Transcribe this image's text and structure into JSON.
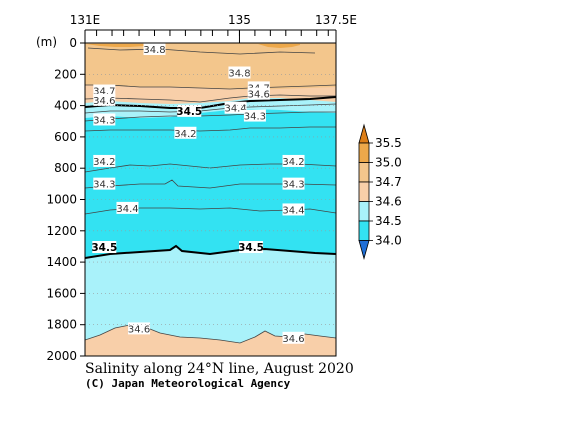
{
  "chart_data": {
    "type": "contour",
    "title": "Salinity along 24°N line, August 2020",
    "credit": "(C) Japan Meteorological Agency",
    "x_axis": {
      "range": [
        131,
        137.5
      ],
      "tick_labels": [
        {
          "value": 131,
          "label": "131E"
        },
        {
          "value": 135,
          "label": "135"
        },
        {
          "value": 137.5,
          "label": "137.5E"
        }
      ]
    },
    "y_axis": {
      "unit": "(m)",
      "range": [
        0,
        2000
      ],
      "inverted": true,
      "ticks": [
        0,
        200,
        400,
        600,
        800,
        1000,
        1200,
        1400,
        1600,
        1800,
        2000
      ]
    },
    "colorbar": {
      "levels": [
        "34.0",
        "34.5",
        "34.6",
        "34.7",
        "35.0",
        "35.5"
      ],
      "colors": {
        "below_34_0": "#1f6fd6",
        "34_0_to_34_5": "#33e2f2",
        "34_5_to_34_6": "#a9f2fa",
        "34_6_to_34_7": "#f8cfa9",
        "34_7_to_35_0": "#f3c68c",
        "35_0_to_35_5": "#eda84a",
        "above_35_5": "#dd7f18"
      }
    },
    "contours": [
      {
        "value": 34.8,
        "points": [
          [
            131.8,
            40
          ],
          [
            133.5,
            50
          ],
          [
            135.5,
            70
          ],
          [
            137.3,
            60
          ]
        ]
      },
      {
        "value": 34.7,
        "points": [
          [
            131,
            270
          ],
          [
            133,
            275
          ],
          [
            135,
            290
          ],
          [
            137.3,
            250
          ]
        ]
      },
      {
        "value": 34.6,
        "points": [
          [
            131,
            350
          ],
          [
            133,
            360
          ],
          [
            135,
            310
          ],
          [
            137.3,
            330
          ]
        ]
      },
      {
        "value": 34.5,
        "points": [
          [
            131,
            410
          ],
          [
            132.5,
            395
          ],
          [
            134,
            420
          ],
          [
            135.5,
            380
          ],
          [
            137.5,
            350
          ]
        ]
      },
      {
        "value": 34.4,
        "points": [
          [
            131,
            450
          ],
          [
            133,
            430
          ],
          [
            135,
            400
          ],
          [
            137.3,
            420
          ]
        ]
      },
      {
        "value": 34.3,
        "points": [
          [
            131,
            505
          ],
          [
            133,
            480
          ],
          [
            135,
            490
          ],
          [
            137.3,
            460
          ]
        ]
      },
      {
        "value": 34.2,
        "points": [
          [
            131,
            560
          ],
          [
            133,
            580
          ],
          [
            135,
            560
          ],
          [
            137.5,
            560
          ]
        ]
      },
      {
        "value": 34.2,
        "points": [
          [
            131,
            830
          ],
          [
            133,
            790
          ],
          [
            135,
            790
          ],
          [
            137.5,
            800
          ]
        ]
      },
      {
        "value": 34.3,
        "points": [
          [
            131,
            930
          ],
          [
            133,
            910
          ],
          [
            135,
            930
          ],
          [
            137.5,
            900
          ]
        ]
      },
      {
        "value": 34.4,
        "points": [
          [
            131,
            1100
          ],
          [
            133,
            1060
          ],
          [
            135,
            1080
          ],
          [
            137.5,
            1060
          ]
        ]
      },
      {
        "value": 34.5,
        "points": [
          [
            131,
            1360
          ],
          [
            133,
            1330
          ],
          [
            135,
            1330
          ],
          [
            137.5,
            1360
          ]
        ]
      },
      {
        "value": 34.6,
        "points": [
          [
            131,
            1880
          ],
          [
            132.3,
            1820
          ],
          [
            134.5,
            1880
          ],
          [
            135.5,
            1840
          ],
          [
            137.5,
            1880
          ]
        ]
      }
    ],
    "contour_labels": [
      {
        "text": "34.8",
        "x": 132.8,
        "y": 45
      },
      {
        "text": "34.8",
        "x": 135,
        "y": 195
      },
      {
        "text": "34.7",
        "x": 131.5,
        "y": 310
      },
      {
        "text": "34.7",
        "x": 135.5,
        "y": 290
      },
      {
        "text": "34.6",
        "x": 131.5,
        "y": 370
      },
      {
        "text": "34.6",
        "x": 135.5,
        "y": 330
      },
      {
        "text": "34.5",
        "x": 133.7,
        "y": 440,
        "bold": true
      },
      {
        "text": "34.4",
        "x": 134.9,
        "y": 420
      },
      {
        "text": "34.3",
        "x": 131.5,
        "y": 495
      },
      {
        "text": "34.3",
        "x": 135.4,
        "y": 470
      },
      {
        "text": "34.2",
        "x": 133.6,
        "y": 580
      },
      {
        "text": "34.2",
        "x": 131.5,
        "y": 760
      },
      {
        "text": "34.2",
        "x": 136.4,
        "y": 760
      },
      {
        "text": "34.3",
        "x": 131.5,
        "y": 905
      },
      {
        "text": "34.3",
        "x": 136.4,
        "y": 905
      },
      {
        "text": "34.4",
        "x": 132.1,
        "y": 1060
      },
      {
        "text": "34.4",
        "x": 136.4,
        "y": 1070
      },
      {
        "text": "34.5",
        "x": 131.5,
        "y": 1310,
        "bold": true
      },
      {
        "text": "34.5",
        "x": 135.3,
        "y": 1310,
        "bold": true
      },
      {
        "text": "34.6",
        "x": 132.4,
        "y": 1830
      },
      {
        "text": "34.6",
        "x": 136.4,
        "y": 1890
      }
    ],
    "station_ticks_lon": [
      131.3,
      131.7,
      132.0,
      132.4,
      132.8,
      133.2,
      133.6,
      134.0,
      134.3,
      134.7,
      135.0,
      135.4,
      135.8,
      136.2,
      136.6,
      137.0,
      137.3
    ]
  }
}
